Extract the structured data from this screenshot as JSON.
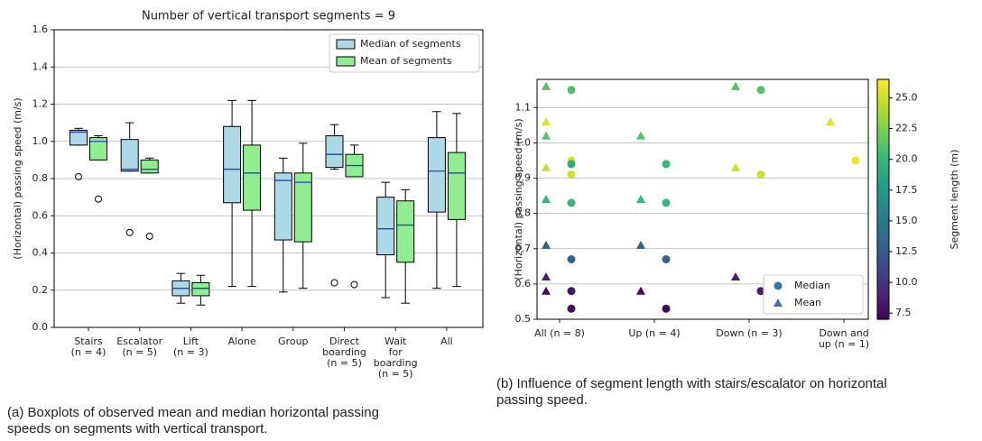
{
  "chart_data": [
    {
      "type": "boxplot",
      "title": "Number of vertical transport segments = 9",
      "y_label": "(Horizontal) passing speed (m/s)",
      "categories": [
        [
          "Stairs",
          "(n = 4)"
        ],
        [
          "Escalator",
          "(n = 5)"
        ],
        [
          "Lift",
          "(n = 3)"
        ],
        [
          "Alone"
        ],
        [
          "Group"
        ],
        [
          "Direct",
          "boarding",
          "(n = 5)"
        ],
        [
          "Wait",
          "for",
          "boarding",
          "(n = 5)"
        ],
        [
          "All"
        ]
      ],
      "series": [
        {
          "name": "Median of segments",
          "color": "#add8e6",
          "median_color": "#2540c8",
          "min": [
            0.98,
            0.84,
            0.13,
            0.22,
            0.19,
            0.85,
            0.16,
            0.21
          ],
          "q1": [
            0.98,
            0.84,
            0.17,
            0.67,
            0.47,
            0.86,
            0.39,
            0.62
          ],
          "median": [
            1.05,
            0.85,
            0.21,
            0.85,
            0.79,
            0.93,
            0.53,
            0.84
          ],
          "q3": [
            1.06,
            1.01,
            0.25,
            1.08,
            0.83,
            1.03,
            0.7,
            1.02
          ],
          "max": [
            1.07,
            1.1,
            0.29,
            1.22,
            0.91,
            1.09,
            0.78,
            1.16
          ],
          "outliers": [
            [
              0.81
            ],
            [
              0.51
            ],
            [],
            [],
            [],
            [
              0.24
            ],
            [],
            []
          ]
        },
        {
          "name": "Mean of segments",
          "color": "#90ee90",
          "median_color": "#2540c8",
          "min": [
            0.9,
            0.83,
            0.12,
            0.22,
            0.21,
            0.81,
            0.13,
            0.22
          ],
          "q1": [
            0.9,
            0.83,
            0.17,
            0.63,
            0.46,
            0.81,
            0.35,
            0.58
          ],
          "median": [
            1.0,
            0.85,
            0.21,
            0.83,
            0.78,
            0.87,
            0.55,
            0.83
          ],
          "q3": [
            1.02,
            0.9,
            0.24,
            0.98,
            0.83,
            0.93,
            0.68,
            0.94
          ],
          "max": [
            1.03,
            0.91,
            0.28,
            1.22,
            0.99,
            0.98,
            0.74,
            1.15
          ],
          "outliers": [
            [
              0.69
            ],
            [
              0.49
            ],
            [],
            [],
            [],
            [
              0.23
            ],
            [],
            []
          ]
        }
      ],
      "ylim": [
        0,
        1.6
      ],
      "yticks": [
        {
          "value": 0,
          "label": "0.0"
        },
        0.2,
        0.4,
        0.6,
        0.8,
        {
          "value": 1,
          "label": "1.0"
        },
        1.2,
        1.4,
        1.6
      ],
      "grid": true,
      "legend": "upper right",
      "caption": [
        "(a) Boxplots of observed mean and median horizontal passing",
        "speeds on segments with vertical transport."
      ]
    },
    {
      "type": "scatter",
      "y_label": "(Horizontal) passing speed (m/s)",
      "categories": [
        [
          "All (n = 8)"
        ],
        [
          "Up (n = 4)"
        ],
        [
          "Down (n = 3)"
        ],
        [
          "Down and",
          "up (n = 1)"
        ]
      ],
      "series": [
        {
          "name": "Median",
          "marker": "circle",
          "legend_color": "#3a75ae",
          "values": [
            [
              1.15,
              0.95,
              0.94,
              0.91,
              0.83,
              0.67,
              0.58,
              0.53
            ],
            [
              0.94,
              0.83,
              0.67,
              0.53
            ],
            [
              1.15,
              0.91,
              0.58
            ],
            [
              0.95
            ]
          ],
          "c": [
            [
              21,
              25.5,
              19,
              25,
              20,
              13,
              8,
              7.5
            ],
            [
              20,
              20,
              13,
              7.5
            ],
            [
              21,
              25,
              8.5
            ],
            [
              26
            ]
          ]
        },
        {
          "name": "Mean",
          "marker": "triangle",
          "legend_color": "#3a75ae",
          "values": [
            [
              1.16,
              1.06,
              1.02,
              0.93,
              0.84,
              0.71,
              0.62,
              0.58
            ],
            [
              1.02,
              0.84,
              0.71,
              0.58
            ],
            [
              1.16,
              0.93,
              0.62
            ],
            [
              1.06
            ]
          ],
          "c": [
            [
              21,
              25.5,
              21,
              25,
              20,
              13,
              8.5,
              7.5
            ],
            [
              21,
              20,
              13,
              7.5
            ],
            [
              21,
              25,
              8.5
            ],
            [
              25.5
            ]
          ]
        }
      ],
      "ylim": [
        0.5,
        1.18
      ],
      "yticks": [
        0.5,
        0.6,
        0.7,
        0.8,
        0.9,
        {
          "value": 1,
          "label": "1.0"
        },
        1.1
      ],
      "grid": true,
      "legend": "lower right",
      "colorbar": {
        "label": "Segment length (m)",
        "cmap": "viridis",
        "clim": [
          7,
          26.5
        ],
        "ticks": [
          7.5,
          {
            "value": 10,
            "label": "10.0"
          },
          12.5,
          {
            "value": 15,
            "label": "15.0"
          },
          17.5,
          {
            "value": 20,
            "label": "20.0"
          },
          22.5,
          {
            "value": 25,
            "label": "25.0"
          }
        ]
      },
      "caption": [
        "(b) Influence of segment length with stairs/escalator on horizontal",
        "passing speed."
      ]
    }
  ]
}
